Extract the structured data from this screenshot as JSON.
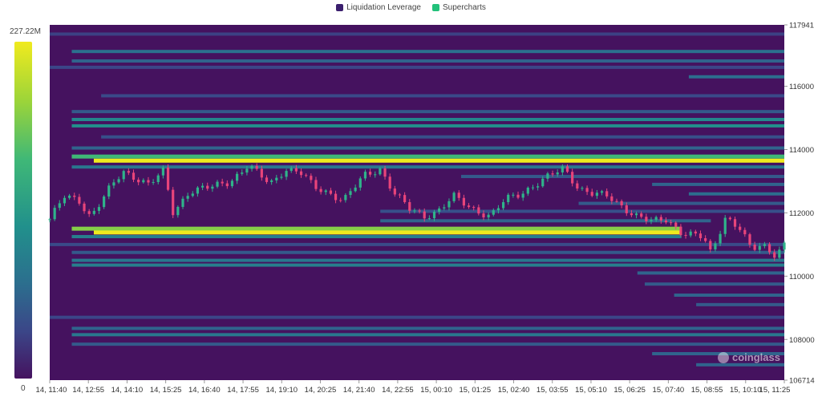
{
  "legend": {
    "items": [
      {
        "label": "Liquidation Leverage",
        "color": "#3b1f6e"
      },
      {
        "label": "Supercharts",
        "color": "#22c17a"
      }
    ]
  },
  "colorbar": {
    "max_label": "227.22M",
    "min_label": "0"
  },
  "watermark": {
    "text": "coinglass"
  },
  "colors": {
    "background": "#45125f",
    "candle_up": "#2fb38a",
    "candle_down": "#e8447a",
    "band_high": "#f0ea1e",
    "band_mid": "#21908c"
  },
  "chart_data": {
    "type": "heatmap",
    "title": "",
    "y_axis": {
      "position": "right",
      "range": [
        106714,
        117941
      ],
      "ticks": [
        "117941",
        "116000",
        "114000",
        "112000",
        "110000",
        "108000",
        "106714"
      ]
    },
    "x_axis": {
      "ticks": [
        "14, 11:40",
        "14, 12:55",
        "14, 14:10",
        "14, 15:25",
        "14, 16:40",
        "14, 17:55",
        "14, 19:10",
        "14, 20:25",
        "14, 21:40",
        "14, 22:55",
        "15, 00:10",
        "15, 01:25",
        "15, 02:40",
        "15, 03:55",
        "15, 05:10",
        "15, 06:25",
        "15, 07:40",
        "15, 08:55",
        "15, 10:10",
        "15, 11:25"
      ]
    },
    "liquidation_bands": [
      {
        "price": 117650,
        "t_start": 0.0,
        "t_end": 1.0,
        "intensity": 0.18
      },
      {
        "price": 117100,
        "t_start": 0.03,
        "t_end": 1.0,
        "intensity": 0.42
      },
      {
        "price": 116800,
        "t_start": 0.03,
        "t_end": 1.0,
        "intensity": 0.35
      },
      {
        "price": 116600,
        "t_start": 0.0,
        "t_end": 1.0,
        "intensity": 0.2
      },
      {
        "price": 116300,
        "t_start": 0.87,
        "t_end": 1.0,
        "intensity": 0.4
      },
      {
        "price": 115700,
        "t_start": 0.07,
        "t_end": 1.0,
        "intensity": 0.22
      },
      {
        "price": 115200,
        "t_start": 0.03,
        "t_end": 1.0,
        "intensity": 0.3
      },
      {
        "price": 114950,
        "t_start": 0.03,
        "t_end": 1.0,
        "intensity": 0.55
      },
      {
        "price": 114750,
        "t_start": 0.03,
        "t_end": 1.0,
        "intensity": 0.6
      },
      {
        "price": 114400,
        "t_start": 0.07,
        "t_end": 1.0,
        "intensity": 0.25
      },
      {
        "price": 114050,
        "t_start": 0.03,
        "t_end": 1.0,
        "intensity": 0.35
      },
      {
        "price": 113780,
        "t_start": 0.03,
        "t_end": 1.0,
        "intensity": 0.75
      },
      {
        "price": 113650,
        "t_start": 0.06,
        "t_end": 1.0,
        "intensity": 1.0
      },
      {
        "price": 113450,
        "t_start": 0.03,
        "t_end": 1.0,
        "intensity": 0.45
      },
      {
        "price": 113150,
        "t_start": 0.56,
        "t_end": 1.0,
        "intensity": 0.3
      },
      {
        "price": 112900,
        "t_start": 0.82,
        "t_end": 1.0,
        "intensity": 0.35
      },
      {
        "price": 112600,
        "t_start": 0.87,
        "t_end": 1.0,
        "intensity": 0.4
      },
      {
        "price": 112300,
        "t_start": 0.72,
        "t_end": 1.0,
        "intensity": 0.3
      },
      {
        "price": 112050,
        "t_start": 0.45,
        "t_end": 1.0,
        "intensity": 0.25
      },
      {
        "price": 111750,
        "t_start": 0.45,
        "t_end": 0.9,
        "intensity": 0.35
      },
      {
        "price": 111500,
        "t_start": 0.03,
        "t_end": 0.86,
        "intensity": 0.85
      },
      {
        "price": 111380,
        "t_start": 0.06,
        "t_end": 0.86,
        "intensity": 1.0
      },
      {
        "price": 111250,
        "t_start": 0.03,
        "t_end": 0.86,
        "intensity": 0.5
      },
      {
        "price": 111000,
        "t_start": 0.0,
        "t_end": 1.0,
        "intensity": 0.22
      },
      {
        "price": 110750,
        "t_start": 0.03,
        "t_end": 1.0,
        "intensity": 0.3
      },
      {
        "price": 110500,
        "t_start": 0.03,
        "t_end": 1.0,
        "intensity": 0.45
      },
      {
        "price": 110350,
        "t_start": 0.03,
        "t_end": 1.0,
        "intensity": 0.5
      },
      {
        "price": 110100,
        "t_start": 0.8,
        "t_end": 1.0,
        "intensity": 0.35
      },
      {
        "price": 109750,
        "t_start": 0.81,
        "t_end": 1.0,
        "intensity": 0.3
      },
      {
        "price": 109400,
        "t_start": 0.85,
        "t_end": 1.0,
        "intensity": 0.35
      },
      {
        "price": 109100,
        "t_start": 0.88,
        "t_end": 1.0,
        "intensity": 0.3
      },
      {
        "price": 108700,
        "t_start": 0.0,
        "t_end": 1.0,
        "intensity": 0.2
      },
      {
        "price": 108350,
        "t_start": 0.03,
        "t_end": 1.0,
        "intensity": 0.35
      },
      {
        "price": 108150,
        "t_start": 0.03,
        "t_end": 1.0,
        "intensity": 0.45
      },
      {
        "price": 107850,
        "t_start": 0.03,
        "t_end": 1.0,
        "intensity": 0.3
      },
      {
        "price": 107550,
        "t_start": 0.82,
        "t_end": 1.0,
        "intensity": 0.35
      },
      {
        "price": 107200,
        "t_start": 0.88,
        "t_end": 1.0,
        "intensity": 0.35
      }
    ],
    "price_series": [
      {
        "t": 0.0,
        "p": 111800
      },
      {
        "t": 0.02,
        "p": 112500
      },
      {
        "t": 0.04,
        "p": 112400
      },
      {
        "t": 0.055,
        "p": 111900
      },
      {
        "t": 0.065,
        "p": 112200
      },
      {
        "t": 0.08,
        "p": 112700
      },
      {
        "t": 0.1,
        "p": 113300
      },
      {
        "t": 0.12,
        "p": 113100
      },
      {
        "t": 0.135,
        "p": 112900
      },
      {
        "t": 0.155,
        "p": 113300
      },
      {
        "t": 0.168,
        "p": 112000
      },
      {
        "t": 0.19,
        "p": 112700
      },
      {
        "t": 0.22,
        "p": 112800
      },
      {
        "t": 0.245,
        "p": 113000
      },
      {
        "t": 0.27,
        "p": 113500
      },
      {
        "t": 0.3,
        "p": 112900
      },
      {
        "t": 0.32,
        "p": 113400
      },
      {
        "t": 0.34,
        "p": 113300
      },
      {
        "t": 0.36,
        "p": 112800
      },
      {
        "t": 0.385,
        "p": 112600
      },
      {
        "t": 0.4,
        "p": 112400
      },
      {
        "t": 0.415,
        "p": 112800
      },
      {
        "t": 0.43,
        "p": 113200
      },
      {
        "t": 0.45,
        "p": 113400
      },
      {
        "t": 0.47,
        "p": 112600
      },
      {
        "t": 0.49,
        "p": 112100
      },
      {
        "t": 0.51,
        "p": 111900
      },
      {
        "t": 0.53,
        "p": 112100
      },
      {
        "t": 0.55,
        "p": 112500
      },
      {
        "t": 0.57,
        "p": 112200
      },
      {
        "t": 0.6,
        "p": 111900
      },
      {
        "t": 0.62,
        "p": 112400
      },
      {
        "t": 0.64,
        "p": 112600
      },
      {
        "t": 0.66,
        "p": 112900
      },
      {
        "t": 0.7,
        "p": 113400
      },
      {
        "t": 0.72,
        "p": 112800
      },
      {
        "t": 0.74,
        "p": 112600
      },
      {
        "t": 0.76,
        "p": 112500
      },
      {
        "t": 0.78,
        "p": 112200
      },
      {
        "t": 0.8,
        "p": 111900
      },
      {
        "t": 0.82,
        "p": 111700
      },
      {
        "t": 0.84,
        "p": 111800
      },
      {
        "t": 0.86,
        "p": 111400
      },
      {
        "t": 0.89,
        "p": 111200
      },
      {
        "t": 0.9,
        "p": 110700
      },
      {
        "t": 0.92,
        "p": 111900
      },
      {
        "t": 0.94,
        "p": 111500
      },
      {
        "t": 0.955,
        "p": 110800
      },
      {
        "t": 0.97,
        "p": 111000
      },
      {
        "t": 0.985,
        "p": 110700
      },
      {
        "t": 1.0,
        "p": 111000
      }
    ]
  }
}
